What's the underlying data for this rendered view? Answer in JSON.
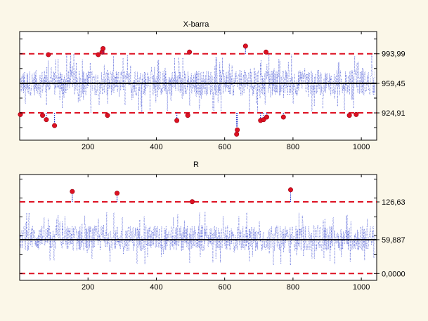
{
  "chart_data": [
    {
      "type": "line",
      "title": "X-barra",
      "xlabel": "",
      "ylabel": "",
      "xlim": [
        0,
        1045
      ],
      "ylim": [
        893,
        1020
      ],
      "x_ticks": [
        "200",
        "400",
        "600",
        "800",
        "1000"
      ],
      "y_ticks": [
        "993,99",
        "959,45",
        "924,91"
      ],
      "control_limits": {
        "ucl": 993.99,
        "center": 959.45,
        "lcl": 924.91
      },
      "grid": false,
      "colors": {
        "series": "#2233cc",
        "center": "#000000",
        "limits": "#dd1122",
        "out_of_control": "#dd1122",
        "panel_bg": "#ffffff"
      },
      "series": [
        {
          "band_low": 924.91,
          "band_high": 993.99,
          "typical_low": 945,
          "typical_high": 975
        }
      ],
      "out_of_control_points": [
        {
          "x": 2,
          "y": 923
        },
        {
          "x": 67,
          "y": 922
        },
        {
          "x": 78,
          "y": 917
        },
        {
          "x": 84,
          "y": 993
        },
        {
          "x": 102,
          "y": 910
        },
        {
          "x": 230,
          "y": 993
        },
        {
          "x": 241,
          "y": 996
        },
        {
          "x": 244,
          "y": 1000
        },
        {
          "x": 257,
          "y": 922
        },
        {
          "x": 460,
          "y": 916
        },
        {
          "x": 492,
          "y": 922
        },
        {
          "x": 497,
          "y": 996
        },
        {
          "x": 635,
          "y": 900
        },
        {
          "x": 637,
          "y": 905
        },
        {
          "x": 661,
          "y": 1003
        },
        {
          "x": 705,
          "y": 916
        },
        {
          "x": 714,
          "y": 917
        },
        {
          "x": 721,
          "y": 996
        },
        {
          "x": 723,
          "y": 920
        },
        {
          "x": 772,
          "y": 920
        },
        {
          "x": 965,
          "y": 922
        },
        {
          "x": 985,
          "y": 923
        }
      ]
    },
    {
      "type": "line",
      "title": "R",
      "xlabel": "",
      "ylabel": "",
      "xlim": [
        0,
        1045
      ],
      "ylim": [
        -12,
        175
      ],
      "x_ticks": [
        "200",
        "400",
        "600",
        "800",
        "1000"
      ],
      "y_ticks": [
        "126,63",
        "59,887",
        "0,0000"
      ],
      "control_limits": {
        "ucl": 126.63,
        "center": 59.887,
        "lcl": 0.0
      },
      "grid": false,
      "colors": {
        "series": "#2233cc",
        "center": "#000000",
        "limits": "#dd1122",
        "out_of_control": "#dd1122",
        "panel_bg": "#ffffff"
      },
      "series": [
        {
          "band_low": 15,
          "band_high": 110,
          "typical_low": 40,
          "typical_high": 85
        }
      ],
      "out_of_control_points": [
        {
          "x": 154,
          "y": 145
        },
        {
          "x": 285,
          "y": 142
        },
        {
          "x": 505,
          "y": 127
        },
        {
          "x": 793,
          "y": 148
        }
      ]
    }
  ]
}
